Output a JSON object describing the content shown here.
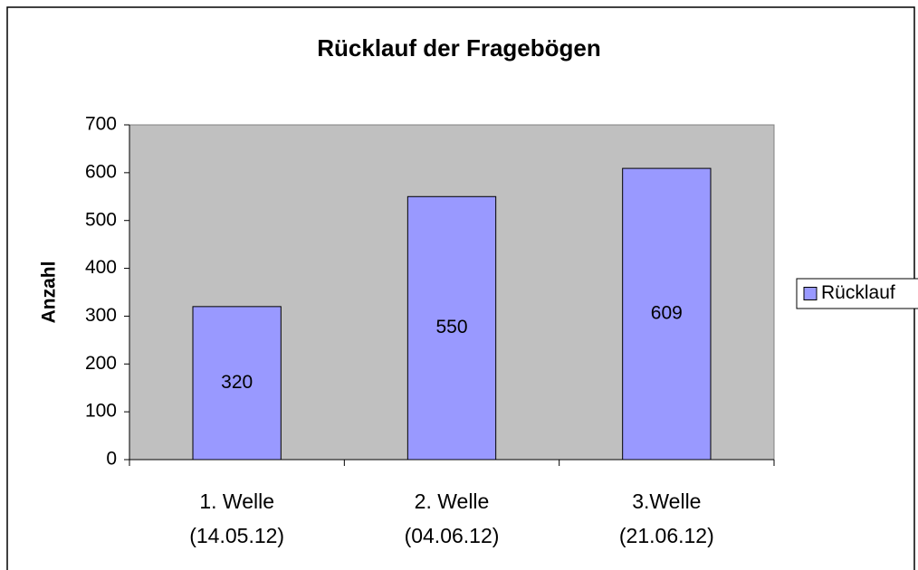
{
  "chart_data": {
    "type": "bar",
    "title": "Rücklauf der Fragebögen",
    "y_label": "Anzahl",
    "categories": [
      [
        "1. Welle",
        "(14.05.12)"
      ],
      [
        "2. Welle",
        "(04.06.12)"
      ],
      [
        "3.Welle",
        "(21.06.12)"
      ]
    ],
    "series": [
      {
        "name": "Rücklauf",
        "color": "#9999ff",
        "values": [
          320,
          550,
          609
        ]
      }
    ],
    "ylim": [
      0,
      700
    ],
    "yticks": [
      0,
      100,
      200,
      300,
      400,
      500,
      600,
      700
    ],
    "plot_background": "#c0c0c0",
    "legend": "right"
  }
}
